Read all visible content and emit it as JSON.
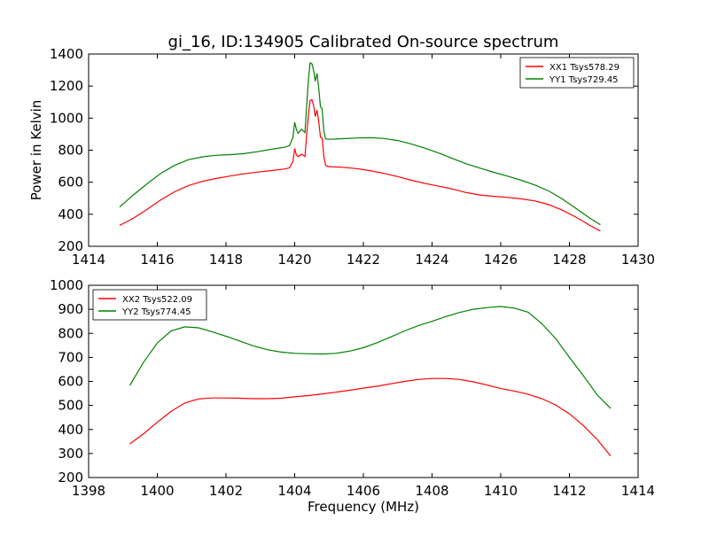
{
  "figure": {
    "title": "gi_16, ID:134905 Calibrated On-source spectrum",
    "xlabel": "Frequency (MHz)"
  },
  "chart_data": [
    {
      "type": "line",
      "title": "gi_16, ID:134905 Calibrated On-source spectrum",
      "xlabel": "",
      "ylabel": "Power in Kelvin",
      "xlim": [
        1414,
        1430
      ],
      "ylim": [
        200,
        1400
      ],
      "xticks": [
        1414,
        1416,
        1418,
        1420,
        1422,
        1424,
        1426,
        1428,
        1430
      ],
      "yticks": [
        200,
        400,
        600,
        800,
        1000,
        1200,
        1400
      ],
      "grid": false,
      "legend_position": "top-right",
      "series": [
        {
          "name": "XX1 Tsys578.29",
          "color": "#ff0000",
          "x": [
            1414.9,
            1415.3,
            1415.7,
            1416.1,
            1416.5,
            1416.9,
            1417.3,
            1417.7,
            1418.1,
            1418.5,
            1418.9,
            1419.3,
            1419.7,
            1419.85,
            1419.95,
            1420.0,
            1420.05,
            1420.1,
            1420.2,
            1420.3,
            1420.35,
            1420.4,
            1420.45,
            1420.5,
            1420.55,
            1420.6,
            1420.65,
            1420.7,
            1420.75,
            1420.8,
            1420.85,
            1420.9,
            1421.0,
            1421.4,
            1421.8,
            1422.2,
            1422.6,
            1423.0,
            1423.4,
            1423.8,
            1424.2,
            1424.6,
            1425.0,
            1425.4,
            1425.8,
            1426.2,
            1426.6,
            1427.0,
            1427.4,
            1427.8,
            1428.2,
            1428.6,
            1428.9
          ],
          "y": [
            330,
            375,
            430,
            490,
            540,
            578,
            605,
            623,
            638,
            652,
            663,
            672,
            682,
            690,
            730,
            810,
            770,
            760,
            775,
            760,
            900,
            1020,
            1110,
            1115,
            1080,
            1010,
            1050,
            980,
            880,
            875,
            760,
            705,
            697,
            693,
            685,
            672,
            655,
            635,
            612,
            592,
            575,
            557,
            535,
            520,
            512,
            505,
            496,
            483,
            460,
            425,
            380,
            330,
            295
          ]
        },
        {
          "name": "YY1 Tsys729.45",
          "color": "#008000",
          "x": [
            1414.9,
            1415.3,
            1415.7,
            1416.1,
            1416.5,
            1416.9,
            1417.3,
            1417.7,
            1418.1,
            1418.5,
            1418.9,
            1419.3,
            1419.7,
            1419.85,
            1419.95,
            1420.0,
            1420.05,
            1420.1,
            1420.2,
            1420.3,
            1420.35,
            1420.4,
            1420.45,
            1420.5,
            1420.55,
            1420.6,
            1420.65,
            1420.7,
            1420.75,
            1420.8,
            1420.85,
            1420.9,
            1421.0,
            1421.4,
            1421.8,
            1422.2,
            1422.6,
            1423.0,
            1423.4,
            1423.8,
            1424.2,
            1424.6,
            1425.0,
            1425.4,
            1425.8,
            1426.2,
            1426.6,
            1427.0,
            1427.4,
            1427.8,
            1428.2,
            1428.6,
            1428.9
          ],
          "y": [
            445,
            520,
            590,
            655,
            705,
            740,
            758,
            768,
            772,
            778,
            790,
            805,
            818,
            828,
            880,
            975,
            930,
            905,
            930,
            910,
            1080,
            1240,
            1345,
            1340,
            1300,
            1230,
            1280,
            1190,
            1070,
            1060,
            920,
            870,
            868,
            872,
            876,
            878,
            873,
            860,
            838,
            812,
            782,
            748,
            715,
            688,
            662,
            638,
            612,
            582,
            545,
            495,
            435,
            375,
            335
          ]
        }
      ]
    },
    {
      "type": "line",
      "title": "",
      "xlabel": "Frequency (MHz)",
      "ylabel": "",
      "xlim": [
        1398,
        1414
      ],
      "ylim": [
        200,
        1000
      ],
      "xticks": [
        1398,
        1400,
        1402,
        1404,
        1406,
        1408,
        1410,
        1412,
        1414
      ],
      "yticks": [
        200,
        300,
        400,
        500,
        600,
        700,
        800,
        900,
        1000
      ],
      "grid": false,
      "legend_position": "top-left",
      "series": [
        {
          "name": "XX2 Tsys522.09",
          "color": "#ff0000",
          "x": [
            1399.2,
            1399.6,
            1400.0,
            1400.4,
            1400.8,
            1401.2,
            1401.6,
            1402.0,
            1402.4,
            1402.8,
            1403.2,
            1403.6,
            1404.0,
            1404.4,
            1404.8,
            1405.2,
            1405.6,
            1406.0,
            1406.4,
            1406.8,
            1407.2,
            1407.6,
            1408.0,
            1408.4,
            1408.8,
            1409.2,
            1409.6,
            1410.0,
            1410.4,
            1410.8,
            1411.2,
            1411.6,
            1412.0,
            1412.4,
            1412.8,
            1413.2
          ],
          "y": [
            340,
            382,
            430,
            475,
            510,
            527,
            531,
            531,
            530,
            528,
            528,
            530,
            536,
            541,
            548,
            555,
            563,
            572,
            580,
            590,
            600,
            608,
            612,
            612,
            608,
            598,
            585,
            570,
            560,
            546,
            528,
            502,
            465,
            417,
            360,
            290
          ]
        },
        {
          "name": "YY2 Tsys774.45",
          "color": "#008000",
          "x": [
            1399.2,
            1399.6,
            1400.0,
            1400.4,
            1400.8,
            1401.2,
            1401.6,
            1402.0,
            1402.4,
            1402.8,
            1403.2,
            1403.6,
            1404.0,
            1404.4,
            1404.8,
            1405.2,
            1405.6,
            1406.0,
            1406.4,
            1406.8,
            1407.2,
            1407.6,
            1408.0,
            1408.4,
            1408.8,
            1409.2,
            1409.6,
            1410.0,
            1410.4,
            1410.8,
            1411.2,
            1411.6,
            1412.0,
            1412.4,
            1412.8,
            1413.2
          ],
          "y": [
            583,
            680,
            760,
            810,
            827,
            823,
            806,
            788,
            768,
            748,
            732,
            722,
            717,
            715,
            714,
            717,
            726,
            740,
            761,
            785,
            810,
            832,
            850,
            870,
            887,
            900,
            907,
            912,
            905,
            888,
            840,
            778,
            700,
            625,
            545,
            488
          ]
        }
      ]
    }
  ]
}
